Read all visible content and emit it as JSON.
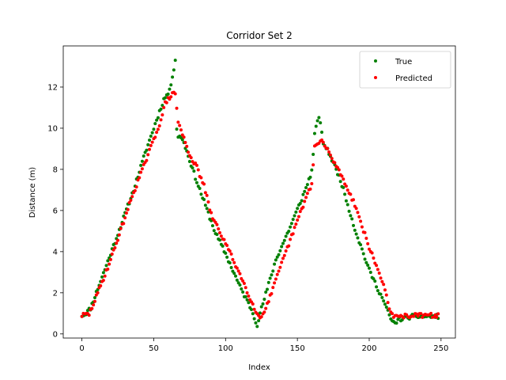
{
  "chart_data": {
    "type": "scatter",
    "title": "Corridor Set 2",
    "xlabel": "Index",
    "ylabel": "Distance (m)",
    "xlim": [
      -13,
      260
    ],
    "ylim": [
      -0.2,
      14.0
    ],
    "xticks": [
      0,
      50,
      100,
      150,
      200,
      250
    ],
    "yticks": [
      0,
      2,
      4,
      6,
      8,
      10,
      12
    ],
    "grid": false,
    "legend_position": "top-right",
    "series": [
      {
        "name": "True",
        "color": "#008000",
        "keypoints": [
          [
            0,
            0.9
          ],
          [
            2,
            0.95
          ],
          [
            6,
            1.25
          ],
          [
            20,
            3.9
          ],
          [
            35,
            6.8
          ],
          [
            45,
            9.0
          ],
          [
            57,
            11.4
          ],
          [
            61,
            11.8
          ],
          [
            65,
            13.3
          ],
          [
            66,
            10.0
          ],
          [
            67,
            9.6
          ],
          [
            70,
            9.5
          ],
          [
            80,
            7.4
          ],
          [
            93,
            4.9
          ],
          [
            100,
            3.9
          ],
          [
            110,
            2.3
          ],
          [
            118,
            1.2
          ],
          [
            122,
            0.45
          ],
          [
            124,
            1.0
          ],
          [
            135,
            3.6
          ],
          [
            145,
            5.2
          ],
          [
            155,
            6.9
          ],
          [
            160,
            7.9
          ],
          [
            162,
            9.7
          ],
          [
            165,
            10.6
          ],
          [
            168,
            9.3
          ],
          [
            172,
            8.8
          ],
          [
            180,
            7.5
          ],
          [
            190,
            5.1
          ],
          [
            200,
            3.1
          ],
          [
            210,
            1.6
          ],
          [
            214,
            0.9
          ],
          [
            216,
            0.6
          ],
          [
            218,
            0.5
          ],
          [
            220,
            0.7
          ],
          [
            224,
            0.75
          ],
          [
            230,
            0.85
          ],
          [
            248,
            0.85
          ]
        ],
        "scatter": 0.1,
        "seed": 11
      },
      {
        "name": "Predicted",
        "color": "#ff0000",
        "keypoints": [
          [
            0,
            0.9
          ],
          [
            3,
            0.95
          ],
          [
            5,
            0.95
          ],
          [
            10,
            1.8
          ],
          [
            20,
            3.6
          ],
          [
            35,
            6.7
          ],
          [
            45,
            8.5
          ],
          [
            55,
            10.4
          ],
          [
            58,
            11.2
          ],
          [
            62,
            11.6
          ],
          [
            65,
            11.7
          ],
          [
            66,
            11.0
          ],
          [
            67,
            10.3
          ],
          [
            70,
            9.7
          ],
          [
            75,
            8.7
          ],
          [
            80,
            8.1
          ],
          [
            85,
            7.2
          ],
          [
            90,
            5.8
          ],
          [
            100,
            4.4
          ],
          [
            110,
            2.9
          ],
          [
            118,
            1.6
          ],
          [
            122,
            0.95
          ],
          [
            124,
            0.8
          ],
          [
            125,
            0.85
          ],
          [
            130,
            1.6
          ],
          [
            140,
            3.6
          ],
          [
            150,
            5.5
          ],
          [
            157,
            6.8
          ],
          [
            160,
            7.3
          ],
          [
            162,
            9.1
          ],
          [
            167,
            9.4
          ],
          [
            172,
            8.8
          ],
          [
            180,
            7.8
          ],
          [
            190,
            6.3
          ],
          [
            200,
            4.2
          ],
          [
            210,
            2.4
          ],
          [
            213,
            1.6
          ],
          [
            215,
            1.0
          ],
          [
            218,
            0.8
          ],
          [
            222,
            0.85
          ],
          [
            230,
            0.9
          ],
          [
            248,
            0.9
          ]
        ],
        "scatter": 0.1,
        "seed": 29
      }
    ]
  }
}
